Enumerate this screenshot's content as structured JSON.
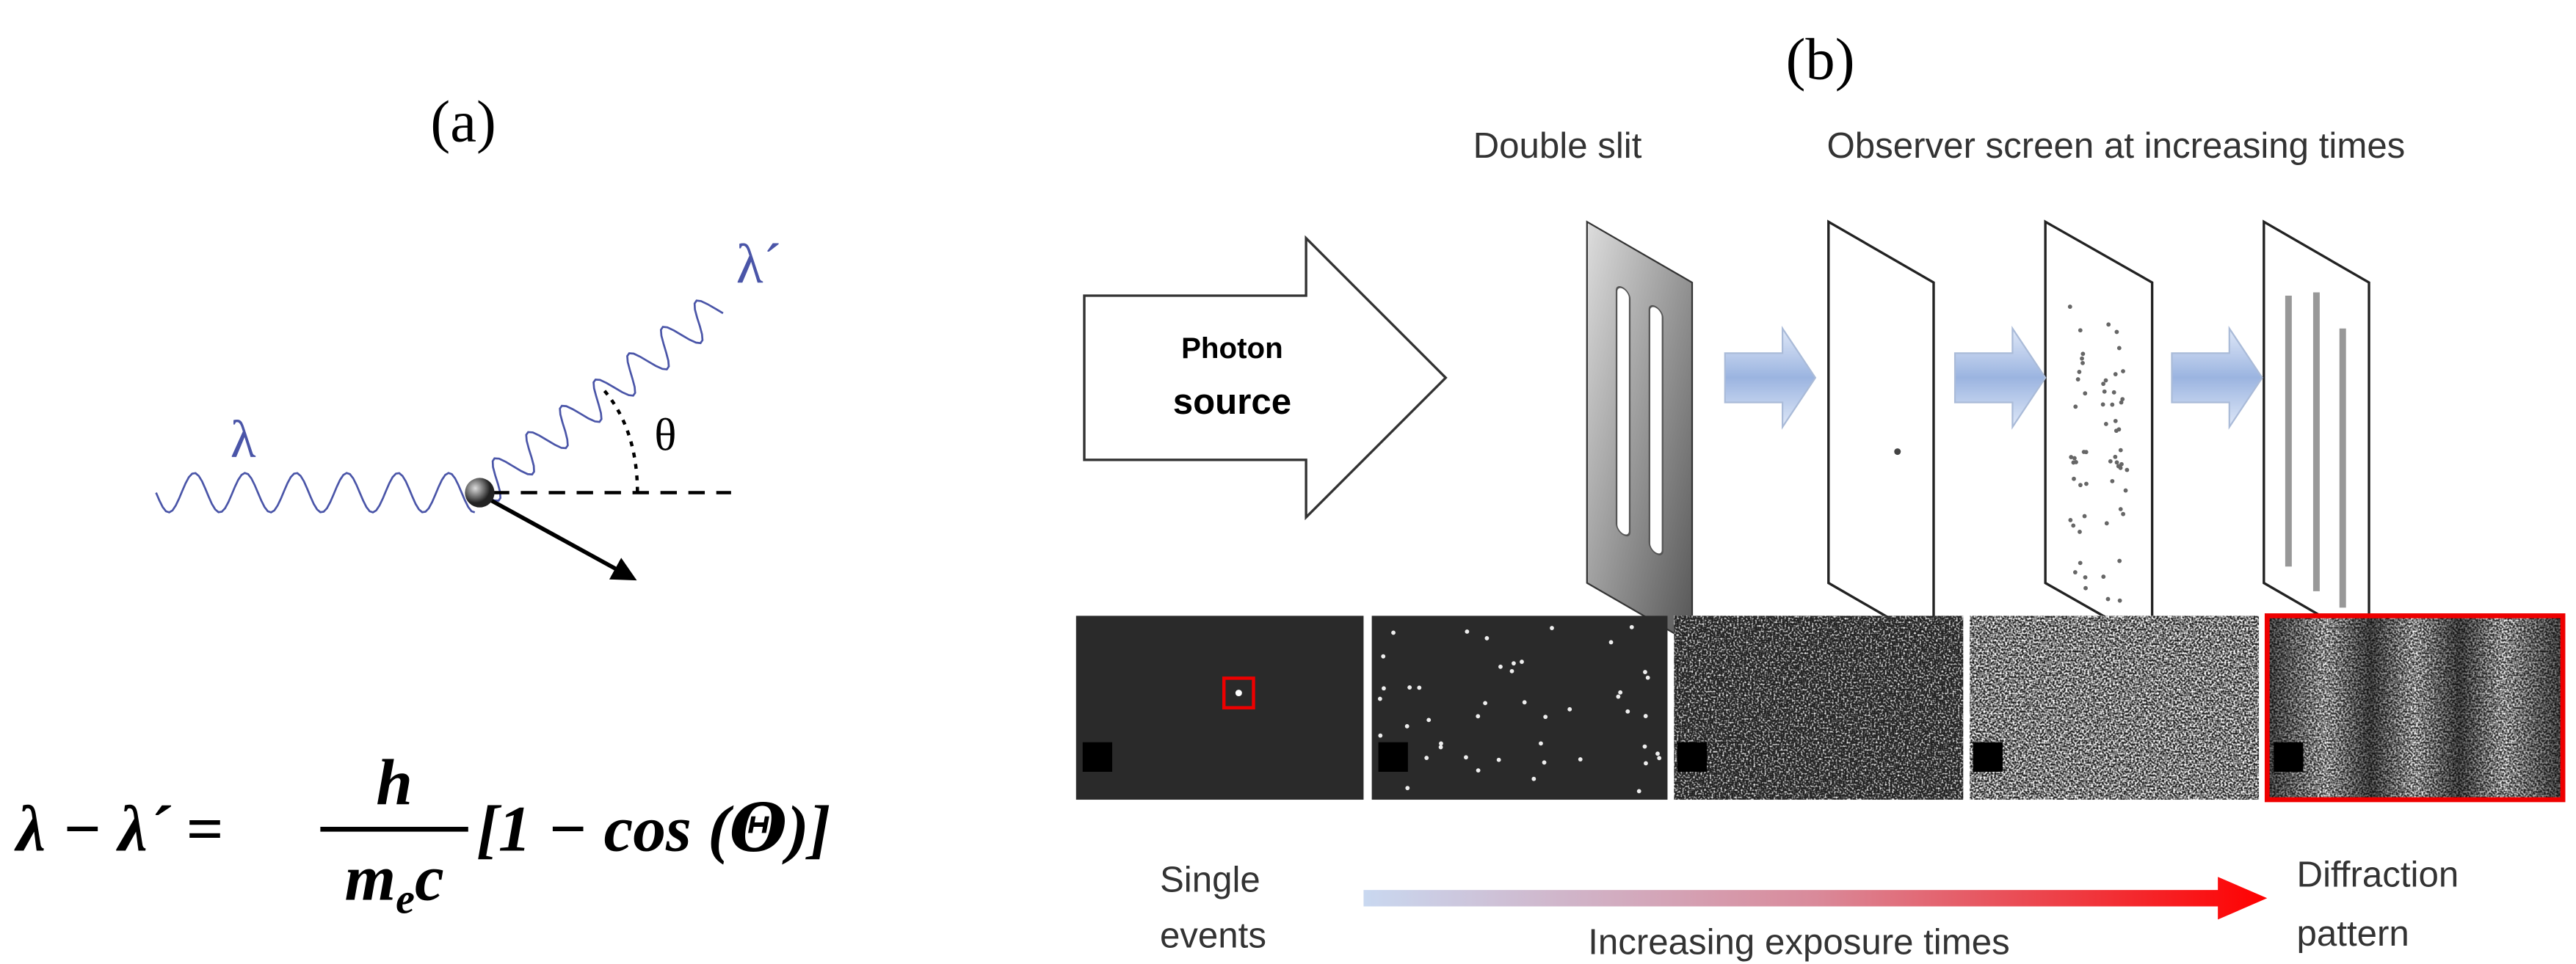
{
  "panel_a": {
    "label": "(a)",
    "lambda_in": "λ",
    "lambda_out": "λ´",
    "theta": "θ",
    "equation": {
      "lhs": "λ − λ´ =",
      "numerator": "h",
      "denominator_m": "m",
      "denominator_sub": "e",
      "denominator_c": "c",
      "bracket": "[1 − cos (𝜣)]"
    }
  },
  "panel_b": {
    "label": "(b)",
    "source": [
      "Photon",
      "source"
    ],
    "double_slit": "Double slit",
    "observer": "Observer screen at increasing times",
    "single_events": [
      "Single",
      "events"
    ],
    "exposure": "Increasing exposure times",
    "diffraction": [
      "Diffraction",
      "pattern"
    ]
  }
}
